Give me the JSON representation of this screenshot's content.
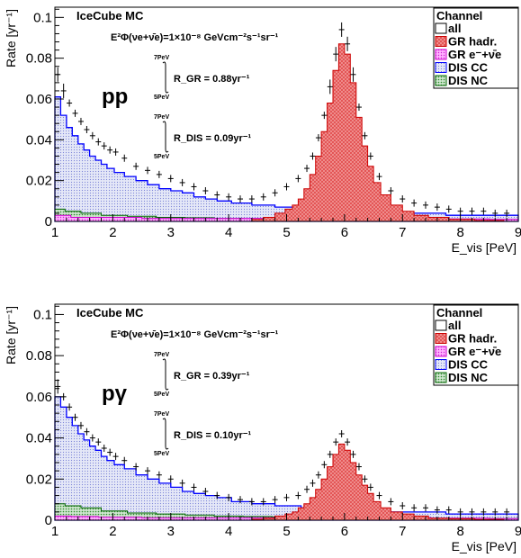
{
  "chart_data": [
    {
      "type": "bar",
      "panel_label": "pp",
      "title": "IceCube MC",
      "flux_label": "E²Φ(νe+ν̄e)=1×10⁻⁸ GeVcm⁻²s⁻¹sr⁻¹",
      "rate_gr": "R_GR = 0.88yr⁻¹",
      "rate_dis": "R_DIS = 0.09yr⁻¹",
      "int_upper": "7PeV",
      "int_lower": "5PeV",
      "xlabel": "E_vis [PeV]",
      "ylabel": "Rate [yr⁻¹]",
      "xlim": [
        1,
        9
      ],
      "ylim": [
        0,
        0.105
      ],
      "xticks": [
        "1",
        "2",
        "3",
        "4",
        "5",
        "6",
        "7",
        "8",
        "9"
      ],
      "yticks": [
        "0",
        "0.02",
        "0.04",
        "0.06",
        "0.08",
        "0.1"
      ],
      "legend": {
        "title": "Channel",
        "placement": "top-right",
        "entries": [
          "all",
          "GR hadr.",
          "GR e⁻+ν̄e",
          "DIS CC",
          "DIS NC"
        ]
      },
      "series": [
        {
          "name": "all",
          "x": [
            1.05,
            1.15,
            1.25,
            1.35,
            1.45,
            1.55,
            1.65,
            1.75,
            1.85,
            1.95,
            2.05,
            2.2,
            2.4,
            2.6,
            2.8,
            3.0,
            3.2,
            3.4,
            3.6,
            3.8,
            4.0,
            4.2,
            4.4,
            4.6,
            4.8,
            5.0,
            5.2,
            5.35,
            5.45,
            5.55,
            5.65,
            5.75,
            5.85,
            5.95,
            6.05,
            6.15,
            6.25,
            6.35,
            6.45,
            6.6,
            6.8,
            7.0,
            7.2,
            7.4,
            7.6,
            7.8,
            8.0,
            8.2,
            8.4,
            8.6,
            8.8
          ],
          "values": [
            0.072,
            0.064,
            0.058,
            0.053,
            0.049,
            0.045,
            0.042,
            0.039,
            0.037,
            0.035,
            0.034,
            0.031,
            0.027,
            0.025,
            0.023,
            0.021,
            0.019,
            0.017,
            0.015,
            0.013,
            0.012,
            0.011,
            0.011,
            0.012,
            0.014,
            0.017,
            0.021,
            0.026,
            0.032,
            0.041,
            0.052,
            0.066,
            0.082,
            0.094,
            0.087,
            0.072,
            0.056,
            0.042,
            0.032,
            0.022,
            0.015,
            0.011,
            0.009,
            0.008,
            0.007,
            0.006,
            0.005,
            0.005,
            0.005,
            0.004,
            0.004
          ]
        },
        {
          "name": "GR hadr.",
          "x": [
            4.5,
            4.7,
            4.9,
            5.05,
            5.15,
            5.25,
            5.35,
            5.45,
            5.55,
            5.65,
            5.75,
            5.85,
            5.95,
            6.05,
            6.15,
            6.25,
            6.35,
            6.45,
            6.55,
            6.7,
            6.9,
            7.1,
            7.3,
            7.6,
            8.0,
            8.5
          ],
          "values": [
            0.001,
            0.002,
            0.004,
            0.006,
            0.008,
            0.011,
            0.016,
            0.023,
            0.032,
            0.044,
            0.058,
            0.074,
            0.087,
            0.082,
            0.068,
            0.051,
            0.037,
            0.027,
            0.019,
            0.013,
            0.008,
            0.005,
            0.003,
            0.002,
            0.001,
            0.0005
          ]
        },
        {
          "name": "DIS CC",
          "x": [
            1.05,
            1.15,
            1.25,
            1.35,
            1.45,
            1.55,
            1.65,
            1.75,
            1.85,
            1.95,
            2.1,
            2.3,
            2.5,
            2.7,
            2.9,
            3.1,
            3.3,
            3.5,
            3.7,
            3.9,
            4.2,
            4.6,
            5.0,
            5.5,
            6.0,
            6.5,
            7.0,
            7.5,
            8.0,
            8.5,
            9.0
          ],
          "values": [
            0.061,
            0.052,
            0.046,
            0.042,
            0.038,
            0.035,
            0.032,
            0.03,
            0.028,
            0.026,
            0.024,
            0.022,
            0.02,
            0.018,
            0.016,
            0.015,
            0.014,
            0.012,
            0.011,
            0.01,
            0.009,
            0.008,
            0.007,
            0.006,
            0.005,
            0.005,
            0.004,
            0.004,
            0.003,
            0.003,
            0.003
          ]
        },
        {
          "name": "DIS NC",
          "x": [
            1.05,
            1.3,
            1.6,
            2.0,
            2.5,
            3.0,
            3.5,
            4.0,
            4.5,
            5.0,
            5.5,
            6.0,
            6.5,
            7.0,
            7.5,
            8.0,
            8.5,
            9.0
          ],
          "values": [
            0.006,
            0.005,
            0.004,
            0.003,
            0.0025,
            0.002,
            0.0018,
            0.0015,
            0.0013,
            0.0012,
            0.001,
            0.001,
            0.0009,
            0.0008,
            0.0008,
            0.0007,
            0.0007,
            0.0006
          ]
        },
        {
          "name": "GR e⁻+ν̄e",
          "x": [
            1.05,
            1.5,
            2.0,
            3.0,
            4.0,
            5.0,
            6.0,
            7.0,
            8.0,
            9.0
          ],
          "values": [
            0.003,
            0.002,
            0.002,
            0.0015,
            0.0015,
            0.0015,
            0.0015,
            0.0015,
            0.0012,
            0.001
          ]
        }
      ]
    },
    {
      "type": "bar",
      "panel_label": "pγ",
      "title": "IceCube MC",
      "flux_label": "E²Φ(νe+ν̄e)=1×10⁻⁸ GeVcm⁻²s⁻¹sr⁻¹",
      "rate_gr": "R_GR = 0.39yr⁻¹",
      "rate_dis": "R_DIS = 0.10yr⁻¹",
      "int_upper": "7PeV",
      "int_lower": "5PeV",
      "xlabel": "E_vis [PeV]",
      "ylabel": "Rate [yr⁻¹]",
      "xlim": [
        1,
        9
      ],
      "ylim": [
        0,
        0.105
      ],
      "xticks": [
        "1",
        "2",
        "3",
        "4",
        "5",
        "6",
        "7",
        "8",
        "9"
      ],
      "yticks": [
        "0",
        "0.02",
        "0.04",
        "0.06",
        "0.08",
        "0.1"
      ],
      "legend": {
        "title": "Channel",
        "placement": "top-right",
        "entries": [
          "all",
          "GR hadr.",
          "GR e⁻+ν̄e",
          "DIS CC",
          "DIS NC"
        ]
      },
      "series": [
        {
          "name": "all",
          "x": [
            1.05,
            1.15,
            1.25,
            1.35,
            1.45,
            1.55,
            1.65,
            1.75,
            1.85,
            1.95,
            2.05,
            2.2,
            2.4,
            2.6,
            2.8,
            3.0,
            3.2,
            3.4,
            3.6,
            3.8,
            4.0,
            4.2,
            4.4,
            4.6,
            4.8,
            5.0,
            5.2,
            5.35,
            5.45,
            5.55,
            5.65,
            5.75,
            5.85,
            5.95,
            6.05,
            6.15,
            6.25,
            6.35,
            6.45,
            6.6,
            6.8,
            7.0,
            7.2,
            7.4,
            7.6,
            7.8,
            8.0,
            8.2,
            8.4,
            8.6,
            8.8
          ],
          "values": [
            0.065,
            0.06,
            0.055,
            0.05,
            0.046,
            0.043,
            0.04,
            0.038,
            0.035,
            0.033,
            0.031,
            0.029,
            0.026,
            0.024,
            0.022,
            0.02,
            0.018,
            0.016,
            0.014,
            0.012,
            0.011,
            0.01,
            0.009,
            0.009,
            0.01,
            0.011,
            0.012,
            0.015,
            0.018,
            0.022,
            0.027,
            0.032,
            0.038,
            0.042,
            0.038,
            0.032,
            0.026,
            0.02,
            0.016,
            0.012,
            0.009,
            0.007,
            0.006,
            0.006,
            0.005,
            0.005,
            0.004,
            0.004,
            0.004,
            0.004,
            0.004
          ]
        },
        {
          "name": "GR hadr.",
          "x": [
            4.5,
            4.7,
            4.9,
            5.05,
            5.15,
            5.25,
            5.35,
            5.45,
            5.55,
            5.65,
            5.75,
            5.85,
            5.95,
            6.05,
            6.15,
            6.25,
            6.35,
            6.45,
            6.55,
            6.7,
            6.9,
            7.1,
            7.3,
            7.6,
            8.0,
            8.5
          ],
          "values": [
            0.0005,
            0.001,
            0.002,
            0.003,
            0.004,
            0.006,
            0.008,
            0.011,
            0.015,
            0.02,
            0.026,
            0.032,
            0.037,
            0.034,
            0.028,
            0.022,
            0.017,
            0.013,
            0.009,
            0.006,
            0.004,
            0.003,
            0.002,
            0.001,
            0.0007,
            0.0004
          ]
        },
        {
          "name": "DIS CC",
          "x": [
            1.05,
            1.15,
            1.25,
            1.35,
            1.45,
            1.55,
            1.65,
            1.75,
            1.85,
            1.95,
            2.1,
            2.3,
            2.5,
            2.7,
            2.9,
            3.1,
            3.3,
            3.5,
            3.7,
            3.9,
            4.2,
            4.6,
            5.0,
            5.5,
            6.0,
            6.5,
            7.0,
            7.5,
            8.0,
            8.5,
            9.0
          ],
          "values": [
            0.06,
            0.055,
            0.05,
            0.046,
            0.042,
            0.039,
            0.036,
            0.034,
            0.031,
            0.029,
            0.027,
            0.025,
            0.022,
            0.02,
            0.018,
            0.016,
            0.014,
            0.013,
            0.012,
            0.011,
            0.009,
            0.008,
            0.007,
            0.006,
            0.005,
            0.005,
            0.004,
            0.004,
            0.003,
            0.003,
            0.003
          ]
        },
        {
          "name": "DIS NC",
          "x": [
            1.05,
            1.3,
            1.6,
            2.0,
            2.5,
            3.0,
            3.5,
            4.0,
            4.5,
            5.0,
            5.5,
            6.0,
            6.5,
            7.0,
            7.5,
            8.0,
            8.5,
            9.0
          ],
          "values": [
            0.008,
            0.007,
            0.006,
            0.0045,
            0.0035,
            0.003,
            0.0025,
            0.002,
            0.0018,
            0.0016,
            0.0014,
            0.0012,
            0.0011,
            0.001,
            0.001,
            0.0009,
            0.0008,
            0.0008
          ]
        },
        {
          "name": "GR e⁻+ν̄e",
          "x": [
            1.05,
            1.5,
            2.0,
            3.0,
            4.0,
            5.0,
            6.0,
            7.0,
            8.0,
            9.0
          ],
          "values": [
            0.002,
            0.0018,
            0.0015,
            0.0012,
            0.0012,
            0.0012,
            0.0012,
            0.0012,
            0.001,
            0.0008
          ]
        }
      ]
    }
  ],
  "colors": {
    "all": "#000000",
    "gr_hadr_fill": "#f08080",
    "gr_hadr_edge": "#cc0000",
    "gr_e_fill": "#ff66ff",
    "gr_e_edge": "#cc00cc",
    "dis_cc_fill": "#d8dcf4",
    "dis_cc_edge": "#0000ff",
    "dis_nc_fill": "#8fc08f",
    "dis_nc_edge": "#006400"
  }
}
